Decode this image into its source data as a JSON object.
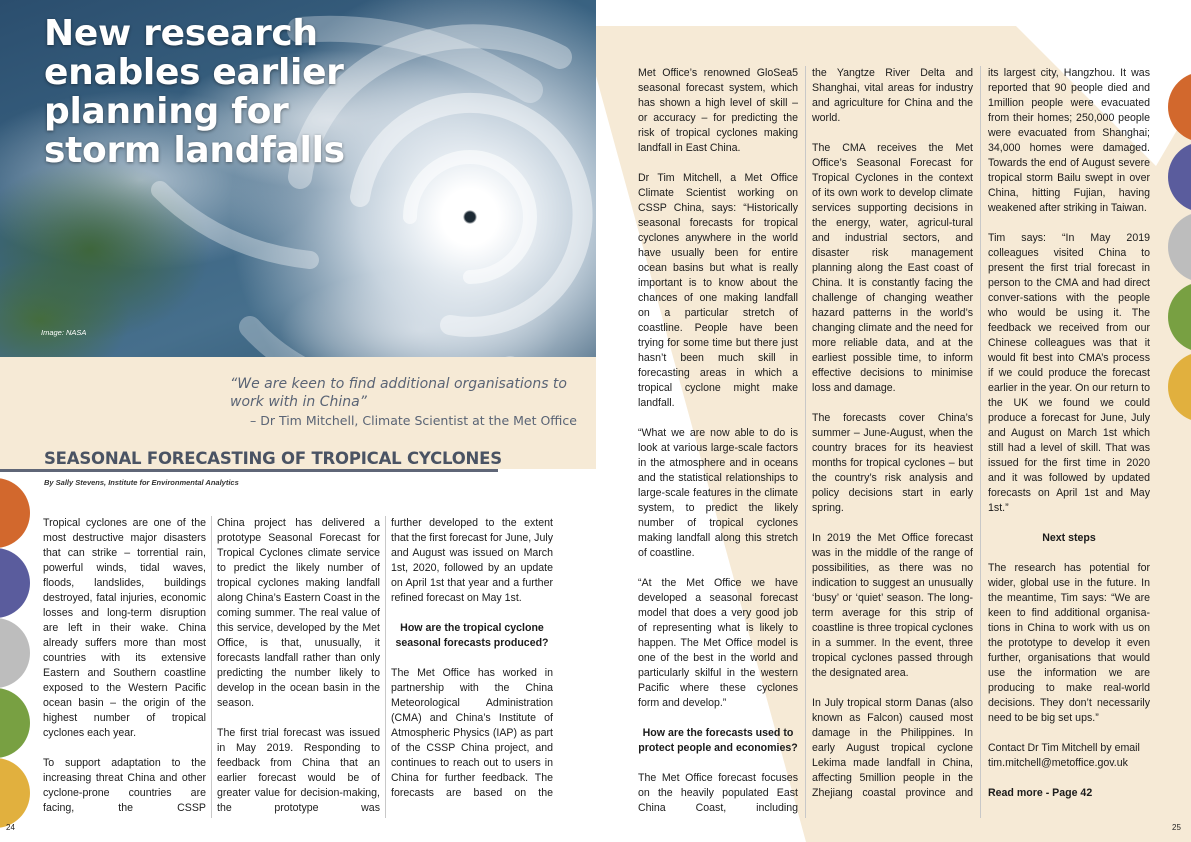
{
  "hero": {
    "title": "New research enables earlier planning for storm landfalls",
    "credit": "Image: NASA"
  },
  "pull_quote": {
    "text": "“We are keen to find additional organisations to work with in China”",
    "attribution": "– Dr Tim Mitchell, Climate Scientist at the Met Office"
  },
  "article": {
    "heading": "SEASONAL FORECASTING OF TROPICAL CYCLONES",
    "byline": "By Sally Stevens, Institute for Environmental Analytics"
  },
  "columns": {
    "c1": [
      "Tropical cyclones are one of the most destructive major disasters that can strike – torrential rain, powerful winds, tidal waves, floods, landslides, buildings destroyed, fatal injuries, economic losses and long-term disruption are left in their wake. China already suffers more than most countries with its extensive Eastern and Southern coastline exposed to the Western Pacific ocean basin – the origin of the highest number of tropical cyclones each year.",
      "To support adaptation to the increasing threat China and other cyclone-prone countries are facing, the CSSP"
    ],
    "c2": [
      "China project has delivered a prototype Seasonal Forecast for Tropical Cyclones climate service to predict the likely number of tropical cyclones making landfall along China’s Eastern Coast in the coming summer. The real value of this service, developed by the Met Office, is that, unusually, it forecasts landfall rather than only predicting the number likely to develop in the ocean basin in the season.",
      "The first trial forecast was issued in May 2019. Responding to feedback from China that an earlier forecast would be of greater value for decision-making, the prototype was"
    ],
    "c3_p1": "further developed to the extent that the first forecast for June, July and August was issued on March 1st, 2020, followed by an update on April 1st that year and a further refined forecast on May 1st.",
    "c3_h1": "How are the tropical cyclone seasonal forecasts produced?",
    "c3_p2": "The Met Office has worked in partnership with the China Meteorological Administration (CMA) and China’s Institute of Atmospheric Physics (IAP) as part of the CSSP China project, and continues to reach out to users in China for further feedback. The forecasts are based on the",
    "c4_p1": "Met Office’s renowned GloSea5 seasonal forecast system, which has shown a high level of skill – or accuracy – for predicting the risk of tropical cyclones making landfall in East China.",
    "c4_p2": "Dr Tim Mitchell, a Met Office Climate Scientist working on CSSP China, says: “Historically seasonal forecasts for tropical cyclones anywhere in the world have usually been for entire ocean basins but what is really important is to know about the chances of one making landfall on a particular stretch of coastline. People have been trying for some time but there just hasn’t been much skill in forecasting areas in which a tropical cyclone might make landfall.",
    "c4_p3": "“What we are now able to do is look at various large-scale factors in the atmosphere and in oceans and the statistical relationships to large-scale features in the climate system, to predict the likely number of tropical cyclones making landfall along this stretch of coastline.",
    "c4_p4": "“At the Met Office we have developed a seasonal forecast model that does a very good job of representing what is likely to happen. The Met Office model is one of the best in the world and particularly skilful in the western Pacific where these cyclones form and develop.”",
    "c4_h1": "How are the forecasts used to protect people and economies?",
    "c4_p5": "The Met Office forecast focuses on the heavily populated East China Coast, including",
    "c5_p1": "the Yangtze River Delta and Shanghai, vital areas for industry and agriculture for China and the world.",
    "c5_p2": "The CMA receives the Met Office’s Seasonal Forecast for Tropical Cyclones in the context of its own work to develop climate services supporting decisions in the energy, water, agricul-tural and industrial sectors, and disaster risk management planning along the East coast of China. It is constantly facing the challenge of changing weather hazard patterns in the world’s changing climate and the need for more reliable data, and at the earliest possible time, to inform effective decisions to minimise loss and damage.",
    "c5_p3": "The forecasts cover China’s summer – June-August, when the country braces for its heaviest months for tropical cyclones – but the country’s risk analysis and policy decisions start in early spring.",
    "c5_p4": "In 2019 the Met Office forecast was in the middle of the range of possibilities, as there was no indication to suggest an unusually ‘busy’ or ‘quiet’ season. The long-term average for this strip of coastline is three tropical cyclones in a summer. In the event, three tropical cyclones passed through the designated area.",
    "c5_p5": "In July tropical storm Danas (also known as Falcon) caused most damage in the Philippines. In early August tropical cyclone Lekima made landfall in China, affecting 5million people in the Zhejiang coastal province and",
    "c6_p1": "its largest city, Hangzhou. It was reported that 90 people died and 1million people were evacuated from their homes; 250,000 people were evacuated from Shanghai; 34,000 homes were damaged. Towards the end of August severe tropical storm Bailu swept in over China, hitting Fujian, having weakened after striking in Taiwan.",
    "c6_p2": "Tim says: “In May 2019 colleagues visited China to present the first trial forecast in person to the CMA and had direct conver-sations with the people who would be using it. The feedback we received from our Chinese colleagues was that it would fit best into CMA’s process if we could produce the forecast earlier in the year. On our return to the UK we found we could produce a forecast for June, July and August on March 1st which still had a level of skill. That was issued for the first time in 2020 and it was followed by updated forecasts on April 1st and May 1st.”",
    "c6_h1": "Next steps",
    "c6_p3": "The research has potential for wider, global use in the future. In the meantime, Tim says: “We are keen to find additional organisa-tions in China to work with us on the prototype to develop it even further, organisations that would use the information we are producing to make real-world decisions. They don’t necessarily need to be big set ups.”",
    "c6_p4": "Contact Dr Tim Mitchell by email tim.mitchell@metoffice.gov.uk",
    "c6_read_more": "Read more - Page 42"
  },
  "page_numbers": {
    "left": "24",
    "right": "25"
  },
  "colors": {
    "beige": "#f6ead6",
    "tab_orange": "#d2682d",
    "tab_indigo": "#5a5c9d",
    "tab_grey": "#bdbdbd",
    "tab_green": "#78a042",
    "tab_gold": "#e1b03e"
  }
}
